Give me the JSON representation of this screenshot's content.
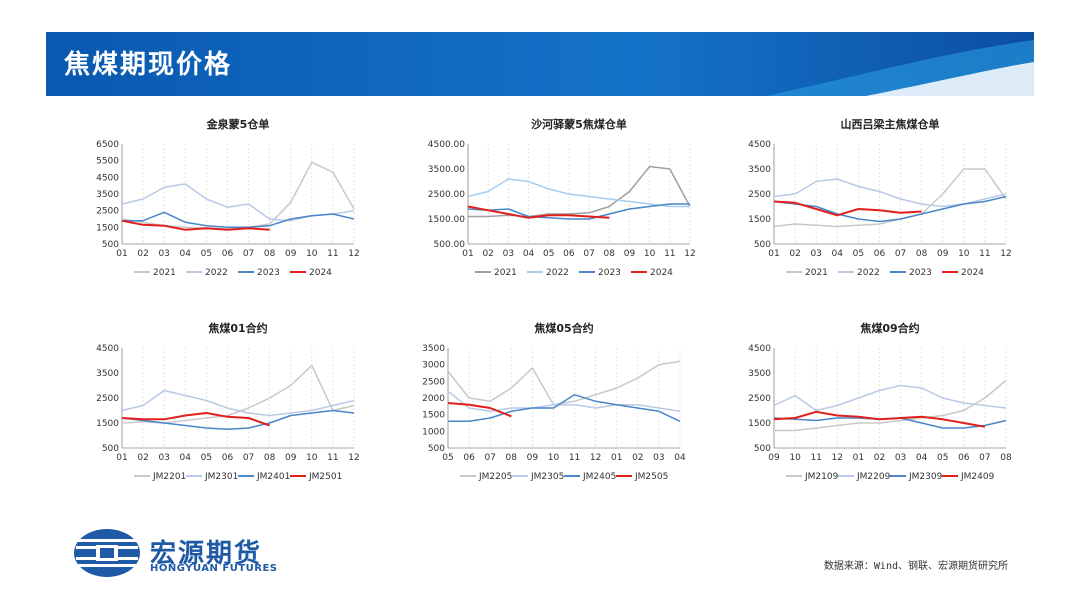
{
  "page": {
    "title": "焦煤期现价格",
    "source": "数据来源：Wind、钢联、宏源期货研究所",
    "logo_cn": "宏源期货",
    "logo_en": "HONGYUAN FUTURES"
  },
  "colors": {
    "banner_dark": "#0b4fa3",
    "banner_light": "#1f86d6",
    "s2021": "#c8c8c8",
    "s2022": "#b9c9e6",
    "s2023": "#4a86c8",
    "s2024": "#e0201b",
    "logo": "#1f5aa6"
  },
  "chart_data": [
    {
      "type": "line",
      "title": "金泉蒙5仓单",
      "categories": [
        "01",
        "02",
        "03",
        "04",
        "05",
        "06",
        "07",
        "08",
        "09",
        "10",
        "11",
        "12"
      ],
      "yticks": [
        "6500",
        "5500",
        "4500",
        "3500",
        "2500",
        "1500",
        "500"
      ],
      "ylim": [
        500,
        6500
      ],
      "series": [
        {
          "name": "2021",
          "color": "#c8c8c8",
          "values": [
            2000,
            1800,
            1600,
            1500,
            1450,
            1400,
            1500,
            1700,
            3000,
            5400,
            4800,
            2600
          ]
        },
        {
          "name": "2022",
          "color": "#b9c9e6",
          "values": [
            2900,
            3200,
            3900,
            4100,
            3200,
            2700,
            2900,
            2000,
            1900,
            2200,
            2300,
            2500
          ]
        },
        {
          "name": "2023",
          "color": "#4a86c8",
          "values": [
            1900,
            1900,
            2400,
            1800,
            1600,
            1500,
            1500,
            1600,
            2000,
            2200,
            2300,
            2000
          ]
        },
        {
          "name": "2024",
          "color": "#e0201b",
          "values": [
            1900,
            1650,
            1600,
            1350,
            1450,
            1350,
            1450,
            1350,
            null,
            null,
            null,
            null
          ]
        }
      ]
    },
    {
      "type": "line",
      "title": "沙河驿蒙5焦煤仓单",
      "categories": [
        "01",
        "02",
        "03",
        "04",
        "05",
        "06",
        "07",
        "08",
        "09",
        "10",
        "11",
        "12"
      ],
      "yticks": [
        "4500.00",
        "3500.00",
        "2500.00",
        "1500.00",
        "500.00"
      ],
      "ylim": [
        500,
        4500
      ],
      "series": [
        {
          "name": "2021",
          "color": "#a0a0a0",
          "values": [
            1600,
            1600,
            1650,
            1600,
            1700,
            1700,
            1750,
            2000,
            2600,
            3600,
            3500,
            2000
          ]
        },
        {
          "name": "2022",
          "color": "#a8cdef",
          "values": [
            2400,
            2600,
            3100,
            3000,
            2700,
            2500,
            2400,
            2300,
            2200,
            2100,
            2000,
            2000
          ]
        },
        {
          "name": "2023",
          "color": "#4a86c8",
          "values": [
            1900,
            1850,
            1900,
            1600,
            1550,
            1500,
            1500,
            1700,
            1900,
            2000,
            2100,
            2100
          ]
        },
        {
          "name": "2024",
          "color": "#e0201b",
          "values": [
            2000,
            1850,
            1700,
            1550,
            1650,
            1650,
            1600,
            1550,
            null,
            null,
            null,
            null
          ]
        }
      ]
    },
    {
      "type": "line",
      "title": "山西吕梁主焦煤仓单",
      "categories": [
        "01",
        "02",
        "03",
        "04",
        "05",
        "06",
        "07",
        "08",
        "09",
        "10",
        "11",
        "12"
      ],
      "yticks": [
        "4500",
        "3500",
        "2500",
        "1500",
        "500"
      ],
      "ylim": [
        500,
        4500
      ],
      "series": [
        {
          "name": "2021",
          "color": "#c8c8c8",
          "values": [
            1200,
            1300,
            1250,
            1200,
            1250,
            1300,
            1500,
            1700,
            2500,
            3500,
            3500,
            2300
          ]
        },
        {
          "name": "2022",
          "color": "#b9c9e6",
          "values": [
            2400,
            2500,
            3000,
            3100,
            2800,
            2600,
            2300,
            2100,
            2000,
            2100,
            2300,
            2500
          ]
        },
        {
          "name": "2023",
          "color": "#4a86c8",
          "values": [
            2200,
            2100,
            2000,
            1700,
            1500,
            1400,
            1500,
            1700,
            1900,
            2100,
            2200,
            2400
          ]
        },
        {
          "name": "2024",
          "color": "#e0201b",
          "values": [
            2200,
            2150,
            1900,
            1650,
            1900,
            1850,
            1750,
            1800,
            null,
            null,
            null,
            null
          ]
        }
      ]
    },
    {
      "type": "line",
      "title": "焦煤01合约",
      "categories": [
        "01",
        "02",
        "03",
        "04",
        "05",
        "06",
        "07",
        "08",
        "09",
        "10",
        "11",
        "12"
      ],
      "yticks": [
        "4500",
        "3500",
        "2500",
        "1500",
        "500"
      ],
      "ylim": [
        500,
        4500
      ],
      "series": [
        {
          "name": "JM2201",
          "color": "#c8c8c8",
          "values": [
            1500,
            1550,
            1500,
            1600,
            1700,
            1800,
            2100,
            2500,
            3000,
            3800,
            2000,
            2200
          ]
        },
        {
          "name": "JM2301",
          "color": "#b9c9e6",
          "values": [
            2000,
            2200,
            2800,
            2600,
            2400,
            2100,
            1900,
            1800,
            1900,
            2000,
            2200,
            2400
          ]
        },
        {
          "name": "JM2401",
          "color": "#4a86c8",
          "values": [
            1700,
            1600,
            1500,
            1400,
            1300,
            1250,
            1300,
            1500,
            1800,
            1900,
            2000,
            1900
          ]
        },
        {
          "name": "JM2501",
          "color": "#e0201b",
          "values": [
            1700,
            1650,
            1650,
            1800,
            1900,
            1750,
            1700,
            1400,
            null,
            null,
            null,
            null
          ]
        }
      ]
    },
    {
      "type": "line",
      "title": "焦煤05合约",
      "categories": [
        "05",
        "06",
        "07",
        "08",
        "09",
        "10",
        "11",
        "12",
        "01",
        "02",
        "03",
        "04"
      ],
      "yticks": [
        "3500",
        "3000",
        "2500",
        "2000",
        "1500",
        "1000",
        "500"
      ],
      "ylim": [
        500,
        3500
      ],
      "series": [
        {
          "name": "JM2205",
          "color": "#c8c8c8",
          "values": [
            2800,
            2000,
            1900,
            2300,
            2900,
            1800,
            1900,
            2100,
            2300,
            2600,
            3000,
            3100
          ]
        },
        {
          "name": "JM2305",
          "color": "#b9c9e6",
          "values": [
            2200,
            1700,
            1600,
            1700,
            1700,
            1800,
            1800,
            1700,
            1800,
            1800,
            1700,
            1600
          ]
        },
        {
          "name": "JM2405",
          "color": "#4a86c8",
          "values": [
            1300,
            1300,
            1400,
            1600,
            1700,
            1700,
            2100,
            1900,
            1800,
            1700,
            1600,
            1300
          ]
        },
        {
          "name": "JM2505",
          "color": "#e0201b",
          "values": [
            1850,
            1800,
            1700,
            1450,
            null,
            null,
            null,
            null,
            null,
            null,
            null,
            null
          ]
        }
      ]
    },
    {
      "type": "line",
      "title": "焦煤09合约",
      "categories": [
        "09",
        "10",
        "11",
        "12",
        "01",
        "02",
        "03",
        "04",
        "05",
        "06",
        "07",
        "08"
      ],
      "yticks": [
        "4500",
        "3500",
        "2500",
        "1500",
        "500"
      ],
      "ylim": [
        500,
        4500
      ],
      "series": [
        {
          "name": "JM2109",
          "color": "#c8c8c8",
          "values": [
            1200,
            1200,
            1300,
            1400,
            1500,
            1500,
            1600,
            1700,
            1800,
            2000,
            2500,
            3200
          ]
        },
        {
          "name": "JM2209",
          "color": "#b9c9e6",
          "values": [
            2200,
            2600,
            2000,
            2200,
            2500,
            2800,
            3000,
            2900,
            2500,
            2300,
            2200,
            2100
          ]
        },
        {
          "name": "JM2309",
          "color": "#4a86c8",
          "values": [
            1700,
            1650,
            1600,
            1700,
            1700,
            1650,
            1700,
            1500,
            1300,
            1300,
            1400,
            1600
          ]
        },
        {
          "name": "JM2409",
          "color": "#e0201b",
          "values": [
            1650,
            1700,
            1950,
            1800,
            1750,
            1650,
            1700,
            1750,
            1650,
            1500,
            1350,
            null
          ]
        }
      ]
    }
  ]
}
